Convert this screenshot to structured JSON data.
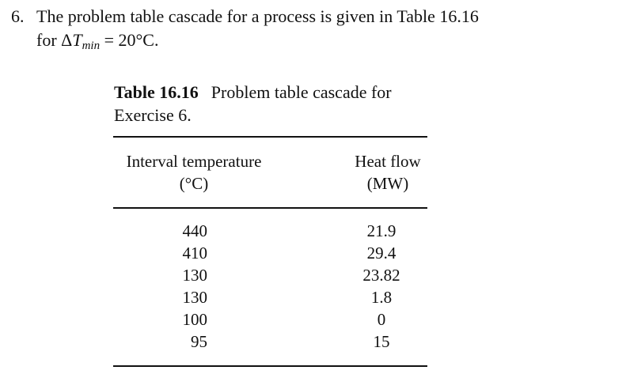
{
  "question": {
    "number": "6.",
    "text_line1": "The problem table cascade for a process is given in Table 16.16",
    "text_line2_prefix": "for ",
    "delta_symbol": "Δ",
    "delta_var": "T",
    "delta_sub": "min",
    "text_line2_suffix": " = 20°C."
  },
  "table": {
    "label": "Table 16.16",
    "caption": "Problem table cascade for Exercise 6.",
    "columns": [
      {
        "header": "Interval temperature",
        "unit": "(°C)"
      },
      {
        "header": "Heat flow",
        "unit": "(MW)"
      }
    ],
    "rows": [
      {
        "temperature": "440",
        "heat_flow": "21.9"
      },
      {
        "temperature": "410",
        "heat_flow": "29.4"
      },
      {
        "temperature": "130",
        "heat_flow": "23.82"
      },
      {
        "temperature": "130",
        "heat_flow": "1.8"
      },
      {
        "temperature": "100",
        "heat_flow": "0"
      },
      {
        "temperature": "95",
        "heat_flow": "15"
      }
    ]
  }
}
